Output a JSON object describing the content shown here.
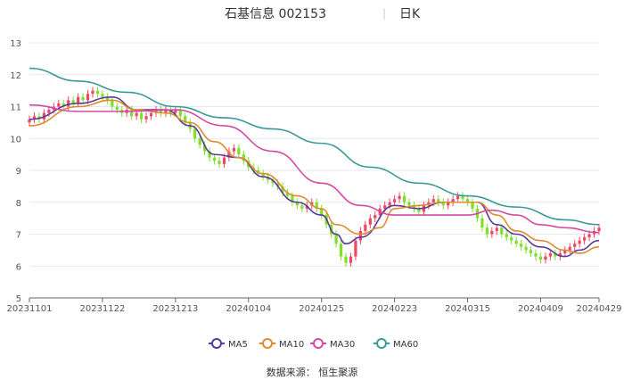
{
  "header": {
    "stock_label": "石基信息 002153",
    "separator": "|",
    "period": "日K"
  },
  "source_text": "数据来源：  恒生聚源",
  "chart_data": {
    "type": "line",
    "subtype": "candlestick-with-moving-averages",
    "yaxis": {
      "min": 5,
      "max": 13,
      "ticks": [
        5,
        6,
        7,
        8,
        9,
        10,
        11,
        12,
        13
      ]
    },
    "xaxis": {
      "tick_labels": [
        "20231101",
        "20231122",
        "20231213",
        "20240104",
        "20240125",
        "20240223",
        "20240315",
        "20240409",
        "20240429"
      ],
      "tick_index": [
        0,
        15,
        30,
        45,
        60,
        75,
        90,
        105,
        117
      ]
    },
    "grid": true,
    "legend_position": "bottom",
    "colors": {
      "up": "#f04864",
      "down": "#7fe02b",
      "MA5": "#5b3a99",
      "MA10": "#e08a2e",
      "MA30": "#d44aa3",
      "MA60": "#3a9a9a"
    },
    "candles_close": [
      10.6,
      10.7,
      10.6,
      10.8,
      10.9,
      11.0,
      11.1,
      11.0,
      11.2,
      11.1,
      11.3,
      11.2,
      11.4,
      11.5,
      11.4,
      11.3,
      11.2,
      11.0,
      10.9,
      10.8,
      10.9,
      10.7,
      10.8,
      10.6,
      10.7,
      10.8,
      10.9,
      10.8,
      10.9,
      10.8,
      10.9,
      10.7,
      10.5,
      10.3,
      10.0,
      9.8,
      9.6,
      9.4,
      9.3,
      9.2,
      9.4,
      9.6,
      9.7,
      9.5,
      9.3,
      9.1,
      9.0,
      8.9,
      8.8,
      8.7,
      8.6,
      8.5,
      8.3,
      8.2,
      8.0,
      7.9,
      7.8,
      7.9,
      8.0,
      7.8,
      7.6,
      7.3,
      7.0,
      6.7,
      6.3,
      6.1,
      6.3,
      6.8,
      7.1,
      7.3,
      7.5,
      7.6,
      7.8,
      7.9,
      8.0,
      8.1,
      8.2,
      8.0,
      7.9,
      7.8,
      7.7,
      7.9,
      8.0,
      8.1,
      8.0,
      7.9,
      8.0,
      8.1,
      8.2,
      8.1,
      8.0,
      7.8,
      7.5,
      7.2,
      7.0,
      7.1,
      7.2,
      7.0,
      6.9,
      6.8,
      6.7,
      6.6,
      6.5,
      6.4,
      6.3,
      6.2,
      6.3,
      6.4,
      6.3,
      6.4,
      6.5,
      6.6,
      6.7,
      6.8,
      6.9,
      7.0,
      7.1,
      7.2
    ],
    "series": [
      {
        "name": "MA5",
        "x": [
          0,
          10,
          17,
          22,
          28,
          33,
          38,
          43,
          48,
          55,
          60,
          63,
          65,
          68,
          75,
          80,
          85,
          92,
          96,
          100,
          105,
          110,
          113,
          117
        ],
        "values": [
          10.6,
          11.1,
          11.3,
          10.9,
          10.9,
          10.4,
          9.5,
          9.4,
          8.8,
          8.0,
          7.6,
          7.0,
          6.7,
          6.9,
          7.9,
          7.8,
          8.0,
          8.0,
          7.3,
          7.0,
          6.6,
          6.3,
          6.5,
          6.8
        ]
      },
      {
        "name": "MA10",
        "x": [
          0,
          10,
          17,
          22,
          28,
          33,
          38,
          43,
          48,
          55,
          60,
          63,
          68,
          72,
          75,
          80,
          85,
          92,
          96,
          100,
          105,
          110,
          113,
          117
        ],
        "values": [
          10.4,
          11.0,
          11.2,
          10.9,
          10.8,
          10.5,
          9.9,
          9.4,
          8.9,
          8.2,
          7.8,
          7.3,
          7.0,
          7.2,
          7.8,
          7.9,
          8.0,
          8.0,
          7.6,
          7.1,
          6.8,
          6.5,
          6.4,
          6.6
        ]
      },
      {
        "name": "MA30",
        "x": [
          0,
          10,
          20,
          30,
          40,
          50,
          60,
          68,
          75,
          80,
          85,
          90,
          95,
          100,
          105,
          110,
          117
        ],
        "values": [
          11.05,
          10.85,
          10.85,
          10.9,
          10.4,
          9.6,
          8.6,
          7.9,
          7.6,
          7.6,
          7.6,
          7.6,
          7.75,
          7.6,
          7.3,
          7.2,
          7.05
        ]
      },
      {
        "name": "MA60",
        "x": [
          0,
          10,
          20,
          30,
          40,
          50,
          60,
          70,
          80,
          90,
          100,
          110,
          117
        ],
        "values": [
          12.2,
          11.8,
          11.45,
          11.0,
          10.65,
          10.3,
          9.85,
          9.1,
          8.6,
          8.2,
          7.85,
          7.45,
          7.3
        ]
      }
    ]
  }
}
